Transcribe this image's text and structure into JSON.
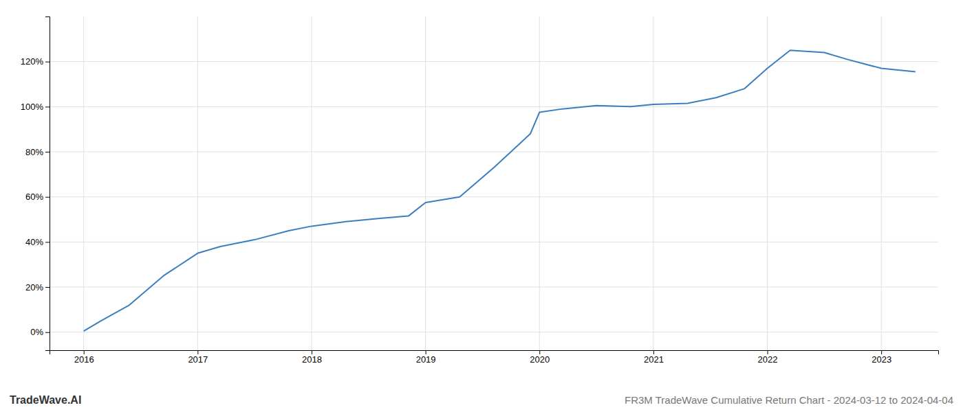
{
  "chart_data": {
    "type": "line",
    "title": "FR3M TradeWave Cumulative Return Chart - 2024-03-12 to 2024-04-04",
    "annotations": [
      "TradeWave.AI"
    ],
    "x": [
      2016.0,
      2016.15,
      2016.4,
      2016.7,
      2017.0,
      2017.2,
      2017.5,
      2017.8,
      2018.0,
      2018.3,
      2018.6,
      2018.85,
      2019.0,
      2019.3,
      2019.6,
      2019.92,
      2020.0,
      2020.2,
      2020.5,
      2020.8,
      2021.0,
      2021.3,
      2021.55,
      2021.8,
      2022.0,
      2022.2,
      2022.5,
      2022.7,
      2022.85,
      2023.0,
      2023.3
    ],
    "values": [
      0.5,
      5.0,
      12.0,
      25.0,
      35.0,
      38.0,
      41.0,
      45.0,
      47.0,
      49.0,
      50.5,
      51.5,
      57.5,
      60.0,
      73.0,
      88.0,
      97.5,
      99.0,
      100.5,
      100.0,
      101.0,
      101.5,
      104.0,
      108.0,
      117.0,
      125.0,
      124.0,
      121.0,
      119.0,
      117.0,
      115.5
    ],
    "color": "#3a7ebf",
    "xlim": [
      2015.7,
      2023.5
    ],
    "ylim": [
      -8,
      140
    ],
    "xticks": [
      2016,
      2017,
      2018,
      2019,
      2020,
      2021,
      2022,
      2023
    ],
    "yticks": [
      {
        "value": 0,
        "label": "0%"
      },
      {
        "value": 20,
        "label": "20%"
      },
      {
        "value": 40,
        "label": "40%"
      },
      {
        "value": 60,
        "label": "60%"
      },
      {
        "value": 80,
        "label": "80%"
      },
      {
        "value": 100,
        "label": "100%"
      },
      {
        "value": 120,
        "label": "120%"
      }
    ],
    "grid": true
  }
}
